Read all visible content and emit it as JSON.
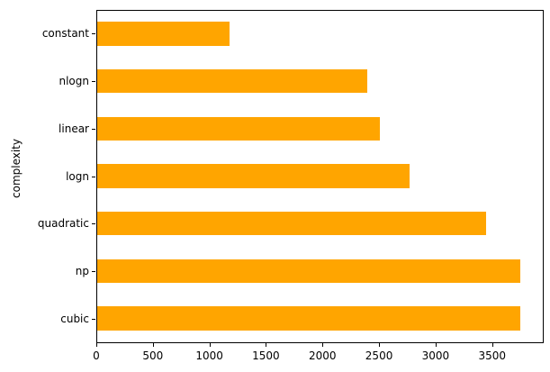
{
  "chart_data": {
    "type": "bar",
    "orientation": "horizontal",
    "title": "",
    "xlabel": "",
    "ylabel": "complexity",
    "categories": [
      "constant",
      "nlogn",
      "linear",
      "logn",
      "quadratic",
      "np",
      "cubic"
    ],
    "values": [
      1170,
      2390,
      2500,
      2760,
      3440,
      3740,
      3740
    ],
    "x_ticks": [
      0,
      500,
      1000,
      1500,
      2000,
      2500,
      3000,
      3500
    ],
    "xlim": [
      0,
      3940
    ],
    "bar_relative_height": 0.5,
    "grid": false,
    "legend_position": "none",
    "bar_color": "#FFA500",
    "colors": {
      "background": "#FFFFFF",
      "spine": "#000000",
      "text": "#000000"
    }
  }
}
